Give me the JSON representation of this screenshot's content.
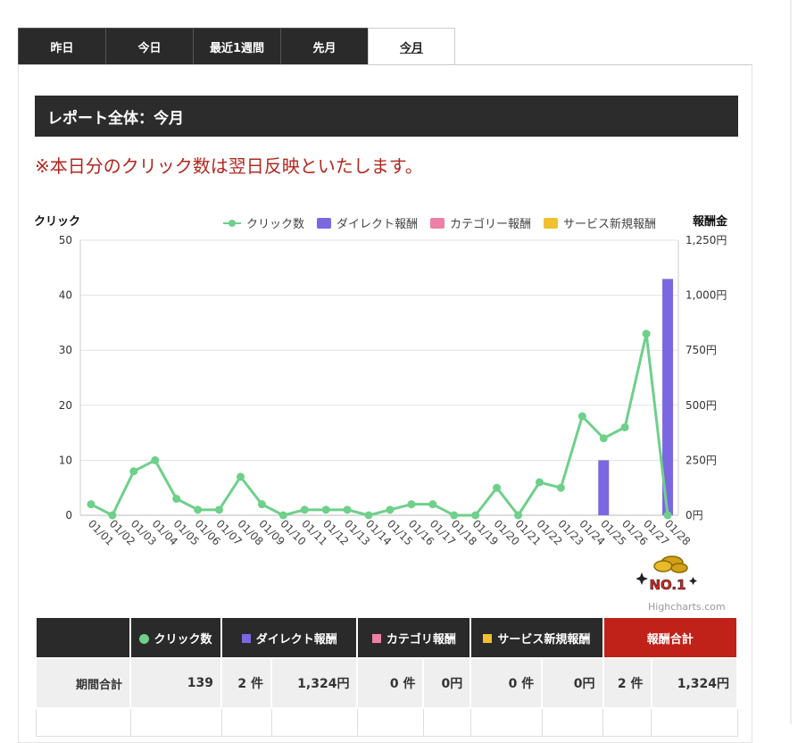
{
  "tabs": [
    {
      "label": "昨日",
      "active": false
    },
    {
      "label": "今日",
      "active": false
    },
    {
      "label": "最近1週間",
      "active": false
    },
    {
      "label": "先月",
      "active": false
    },
    {
      "label": "今月",
      "active": true
    }
  ],
  "report": {
    "title": "レポート全体：今月",
    "notice": "※本日分のクリック数は翌日反映といたします。"
  },
  "chart_data": {
    "type": "line",
    "y_left_title": "クリック",
    "y_right_title": "報酬金",
    "y_left_ticks": [
      "0",
      "10",
      "20",
      "30",
      "40",
      "50"
    ],
    "y_right_ticks": [
      "0円",
      "250円",
      "500円",
      "750円",
      "1,000円",
      "1,250円"
    ],
    "ylim_left": [
      0,
      50
    ],
    "ylim_right": [
      0,
      1250
    ],
    "grid": true,
    "legend_position": "top-right",
    "categories": [
      "01/01",
      "01/02",
      "01/03",
      "01/04",
      "01/05",
      "01/06",
      "01/07",
      "01/08",
      "01/09",
      "01/10",
      "01/11",
      "01/12",
      "01/13",
      "01/14",
      "01/15",
      "01/16",
      "01/17",
      "01/18",
      "01/19",
      "01/20",
      "01/21",
      "01/22",
      "01/23",
      "01/24",
      "01/25",
      "01/26",
      "01/27",
      "01/28"
    ],
    "series": [
      {
        "name": "クリック数",
        "type": "line",
        "axis": "left",
        "color": "#6ed08a",
        "values": [
          2,
          0,
          8,
          10,
          3,
          1,
          1,
          7,
          2,
          0,
          1,
          1,
          1,
          0,
          1,
          2,
          2,
          0,
          0,
          5,
          0,
          6,
          5,
          18,
          14,
          16,
          33,
          0
        ]
      },
      {
        "name": "ダイレクト報酬",
        "type": "bar",
        "axis": "right",
        "color": "#7b68e0",
        "values": [
          0,
          0,
          0,
          0,
          0,
          0,
          0,
          0,
          0,
          0,
          0,
          0,
          0,
          0,
          0,
          0,
          0,
          0,
          0,
          0,
          0,
          0,
          0,
          0,
          250,
          0,
          0,
          1074
        ]
      },
      {
        "name": "カテゴリー報酬",
        "type": "bar",
        "axis": "right",
        "color": "#ee7fa6",
        "values": [
          0,
          0,
          0,
          0,
          0,
          0,
          0,
          0,
          0,
          0,
          0,
          0,
          0,
          0,
          0,
          0,
          0,
          0,
          0,
          0,
          0,
          0,
          0,
          0,
          0,
          0,
          0,
          0
        ]
      },
      {
        "name": "サービス新規報酬",
        "type": "bar",
        "axis": "right",
        "color": "#f0c030",
        "values": [
          0,
          0,
          0,
          0,
          0,
          0,
          0,
          0,
          0,
          0,
          0,
          0,
          0,
          0,
          0,
          0,
          0,
          0,
          0,
          0,
          0,
          0,
          0,
          0,
          0,
          0,
          0,
          0
        ]
      }
    ]
  },
  "badge": {
    "text": "NO.1"
  },
  "credit": "Highcharts.com",
  "summary": {
    "headers": {
      "clicks": "クリック数",
      "direct": "ダイレクト報酬",
      "category": "カテゴリ報酬",
      "service": "サービス新規報酬",
      "total": "報酬合計"
    },
    "colors": {
      "clicks": "#6ed08a",
      "direct": "#7b68e0",
      "category": "#ee7fa6",
      "service": "#f0c030"
    },
    "row": {
      "label": "期間合計",
      "clicks": "139",
      "direct_count": "2 件",
      "direct_amount": "1,324円",
      "category_count": "0 件",
      "category_amount": "0円",
      "service_count": "0 件",
      "service_amount": "0円",
      "total_count": "2 件",
      "total_amount": "1,324円"
    }
  }
}
